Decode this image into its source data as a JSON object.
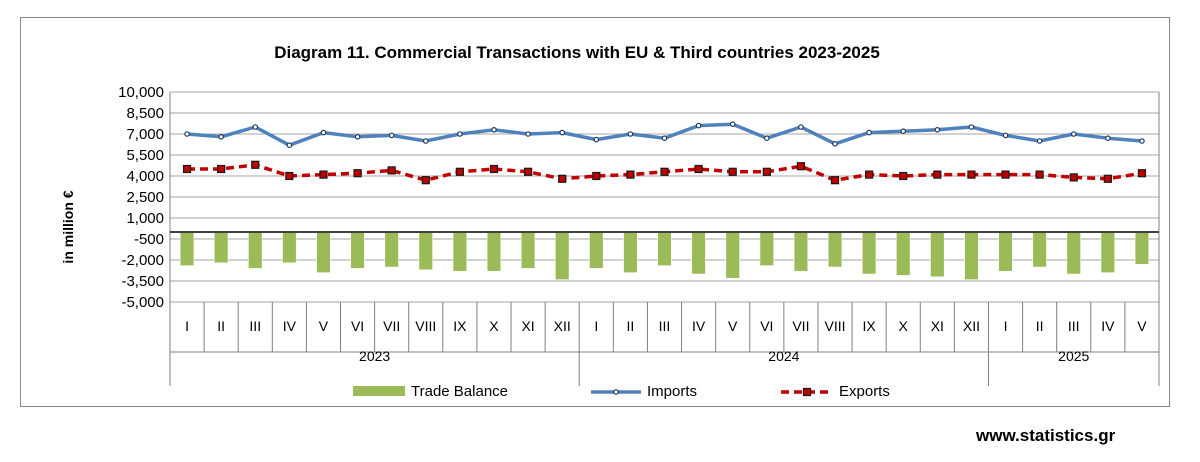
{
  "chart_data": {
    "type": "bar+line",
    "title": "Diagram 11. Commercial Transactions with EU & Third countries 2023-2025",
    "ylabel": "in million  €",
    "xlabel": "",
    "ylim": [
      -5000,
      10000
    ],
    "y_ticks": [
      "10,000",
      "8,500",
      "7,000",
      "5,500",
      "4,000",
      "2,500",
      "1,000",
      "-500",
      "-2,000",
      "-3,500",
      "-5,000"
    ],
    "y_tick_values": [
      10000,
      8500,
      7000,
      5500,
      4000,
      2500,
      1000,
      -500,
      -2000,
      -3500,
      -5000
    ],
    "categories": [
      "I",
      "II",
      "III",
      "IV",
      "V",
      "VI",
      "VII",
      "VIII",
      "IX",
      "X",
      "XI",
      "XII",
      "I",
      "II",
      "III",
      "IV",
      "V",
      "VI",
      "VII",
      "VIII",
      "IX",
      "X",
      "XI",
      "XII",
      "I",
      "II",
      "III",
      "IV",
      "V"
    ],
    "year_groups": [
      {
        "label": "2023",
        "count": 12
      },
      {
        "label": "2024",
        "count": 12
      },
      {
        "label": "2025",
        "count": 5
      }
    ],
    "series": [
      {
        "name": "Trade Balance",
        "type": "bar",
        "color": "#9bbb59",
        "values": [
          -2400,
          -2200,
          -2600,
          -2200,
          -2900,
          -2600,
          -2500,
          -2700,
          -2800,
          -2800,
          -2600,
          -3400,
          -2600,
          -2900,
          -2400,
          -3000,
          -3300,
          -2400,
          -2800,
          -2500,
          -3000,
          -3100,
          -3200,
          -3400,
          -2800,
          -2500,
          -3000,
          -2900,
          -2300
        ]
      },
      {
        "name": "Imports",
        "type": "line",
        "color": "#4f81bd",
        "values": [
          7000,
          6800,
          7500,
          6200,
          7100,
          6800,
          6900,
          6500,
          7000,
          7300,
          7000,
          7100,
          6600,
          7000,
          6700,
          7600,
          7700,
          6700,
          7500,
          6300,
          7100,
          7200,
          7300,
          7500,
          6900,
          6500,
          7000,
          6700,
          6500
        ]
      },
      {
        "name": "Exports",
        "type": "line",
        "color": "#c00000",
        "values": [
          4500,
          4500,
          4800,
          4000,
          4100,
          4200,
          4400,
          3700,
          4300,
          4500,
          4300,
          3800,
          4000,
          4100,
          4300,
          4500,
          4300,
          4300,
          4700,
          3700,
          4100,
          4000,
          4100,
          4100,
          4100,
          4100,
          3900,
          3800,
          4200
        ]
      }
    ],
    "legend": [
      "Trade Balance",
      "Imports",
      "Exports"
    ],
    "legend_position": "bottom",
    "grid": true
  },
  "footer": {
    "website": "www.statistics.gr"
  }
}
